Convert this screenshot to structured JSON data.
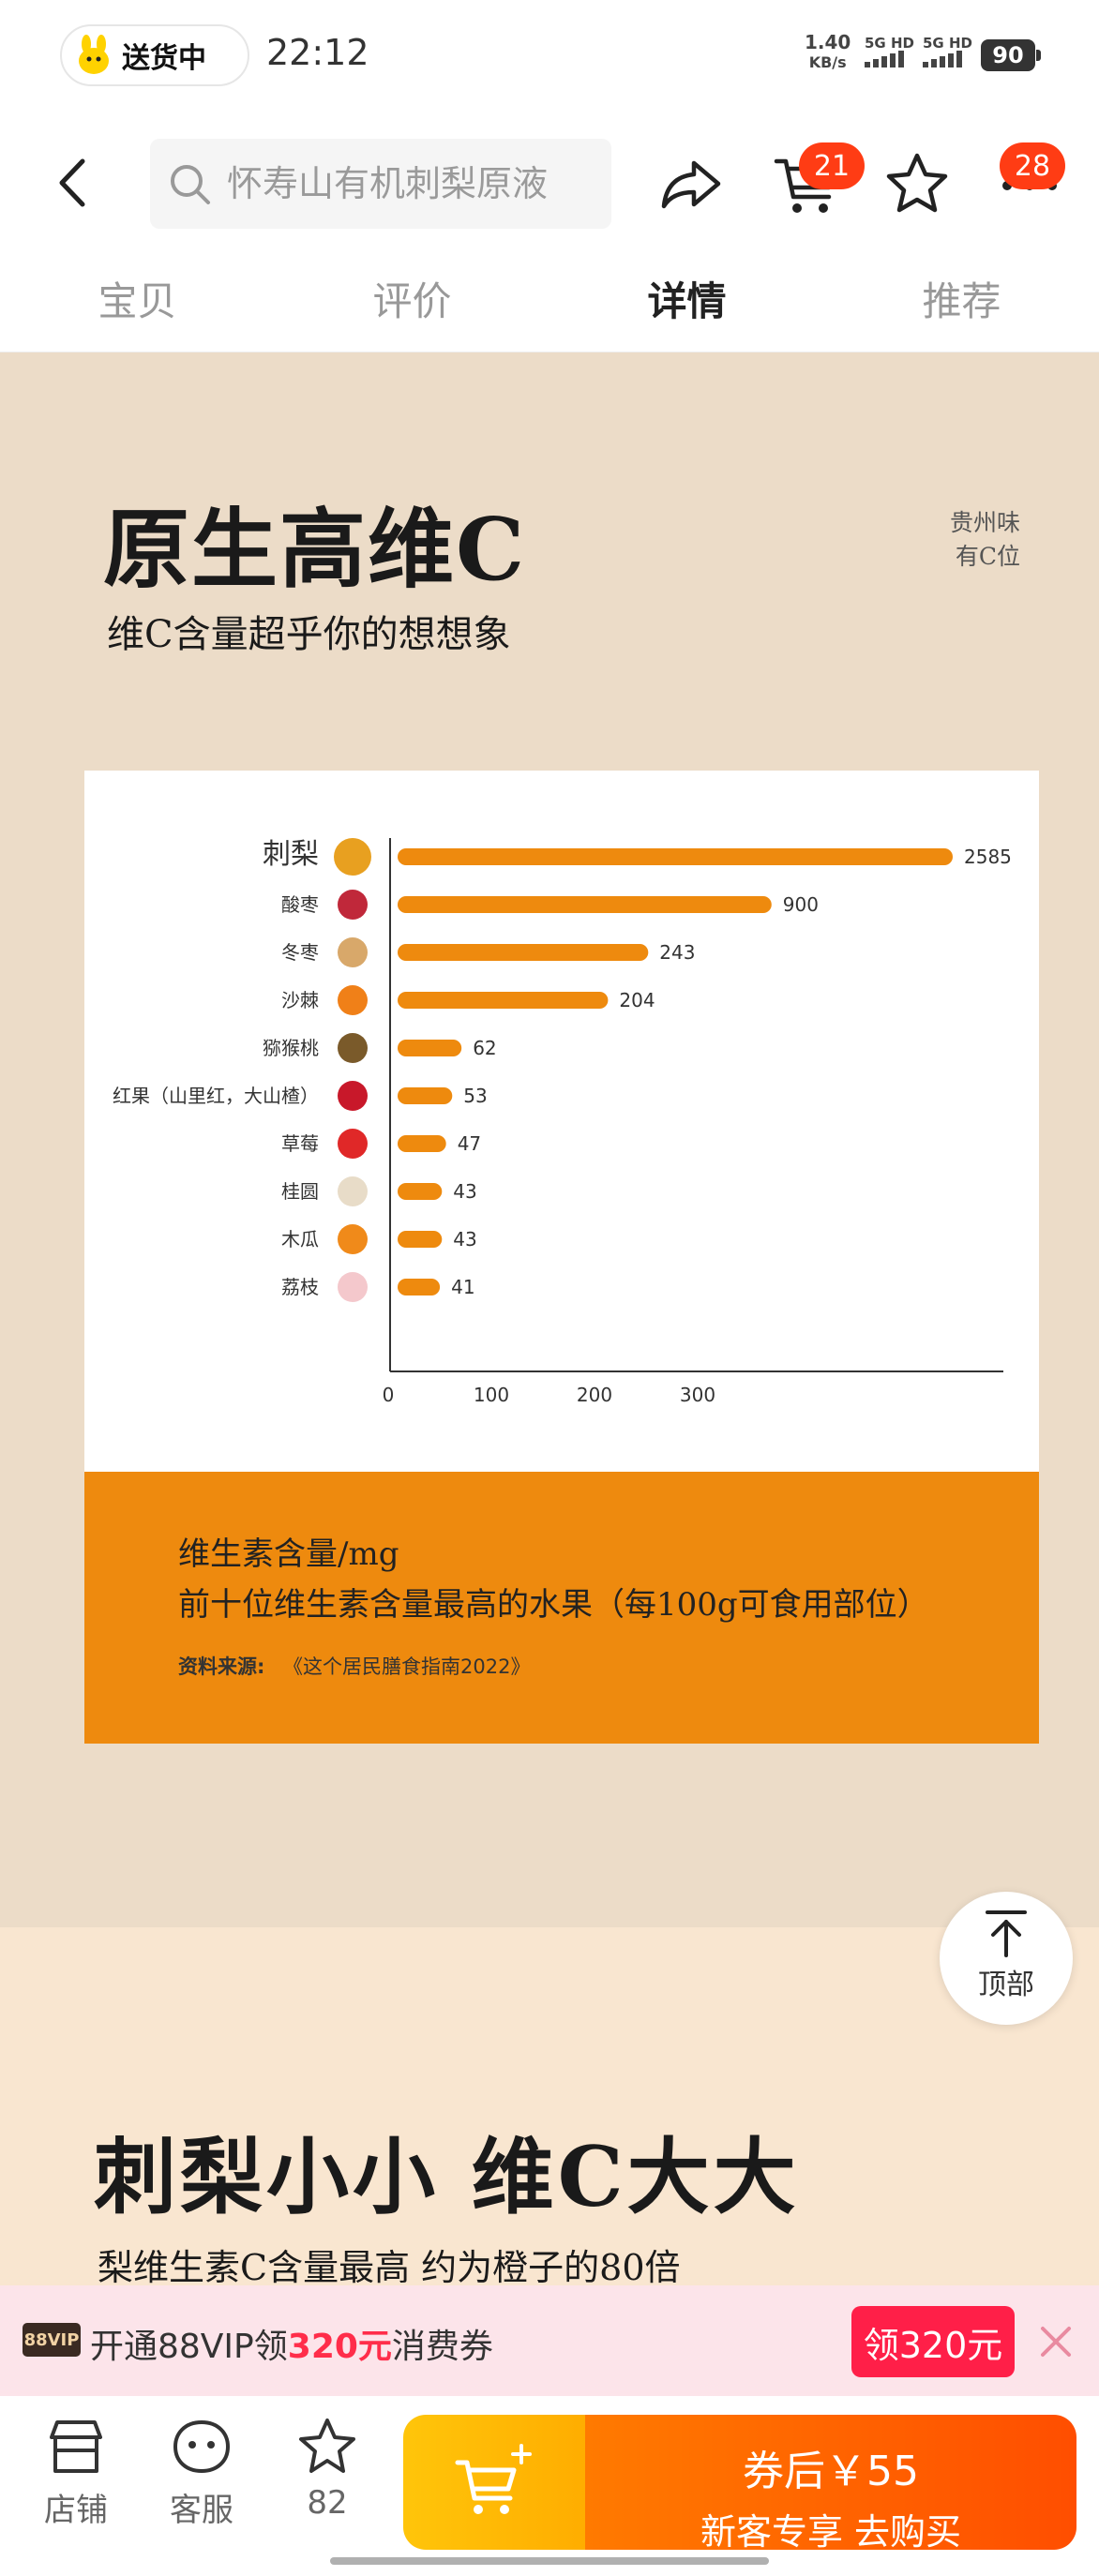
{
  "status_bar": {
    "pill_label": "送货中",
    "time": "22:12",
    "net_speed_value": "1.40",
    "net_speed_unit": "KB/s",
    "signal1": "5G HD",
    "signal2": "5G HD",
    "battery": "90"
  },
  "nav": {
    "search_placeholder": "怀寿山有机刺梨原液",
    "cart_badge": "21",
    "more_badge": "28"
  },
  "tabs": [
    {
      "label": "宝贝",
      "active": false
    },
    {
      "label": "评价",
      "active": false
    },
    {
      "label": "详情",
      "active": true
    },
    {
      "label": "推荐",
      "active": false
    }
  ],
  "section1": {
    "title": "原生高维C",
    "subtitle": "维C含量超乎你的想想象",
    "seal_line1": "贵州味",
    "seal_line2": "有C位"
  },
  "chart_data": {
    "type": "bar",
    "orientation": "horizontal",
    "categories": [
      "刺梨",
      "酸枣",
      "冬枣",
      "沙棘",
      "猕猴桃",
      "红果（山里红，大山楂）",
      "草莓",
      "桂圆",
      "木瓜",
      "荔枝"
    ],
    "values": [
      2585,
      900,
      243,
      204,
      62,
      53,
      47,
      43,
      43,
      41
    ],
    "x_ticks": [
      "0",
      "100",
      "200",
      "300"
    ],
    "bar_color": "#ee8a0e",
    "note": "broken axis: values beyond 300 compressed"
  },
  "chart_footer": {
    "line1": "维生素含量/mg",
    "line2": "前十位维生素含量最高的水果（每100g可食用部位）",
    "source_label": "资料来源:",
    "source": "《这个居民膳食指南2022》"
  },
  "section2": {
    "title": "刺梨小小  维C大大",
    "subtitle": "梨维生素C含量最高   约为橙子的80倍"
  },
  "back_to_top": "顶部",
  "vip_banner": {
    "tag": "88VIP",
    "text_prefix": "开通88VIP领",
    "amount": "320元",
    "text_suffix": "消费券",
    "button": "领320元"
  },
  "bottom_bar": {
    "shop": "店铺",
    "service": "客服",
    "favorites_count": "82",
    "buy_line1": "券后￥55",
    "buy_line2": "新客专享  去购买"
  },
  "colors": {
    "accent_orange": "#ee8a0e",
    "badge_red": "#ff3c14",
    "vip_red": "#ff1f48"
  }
}
